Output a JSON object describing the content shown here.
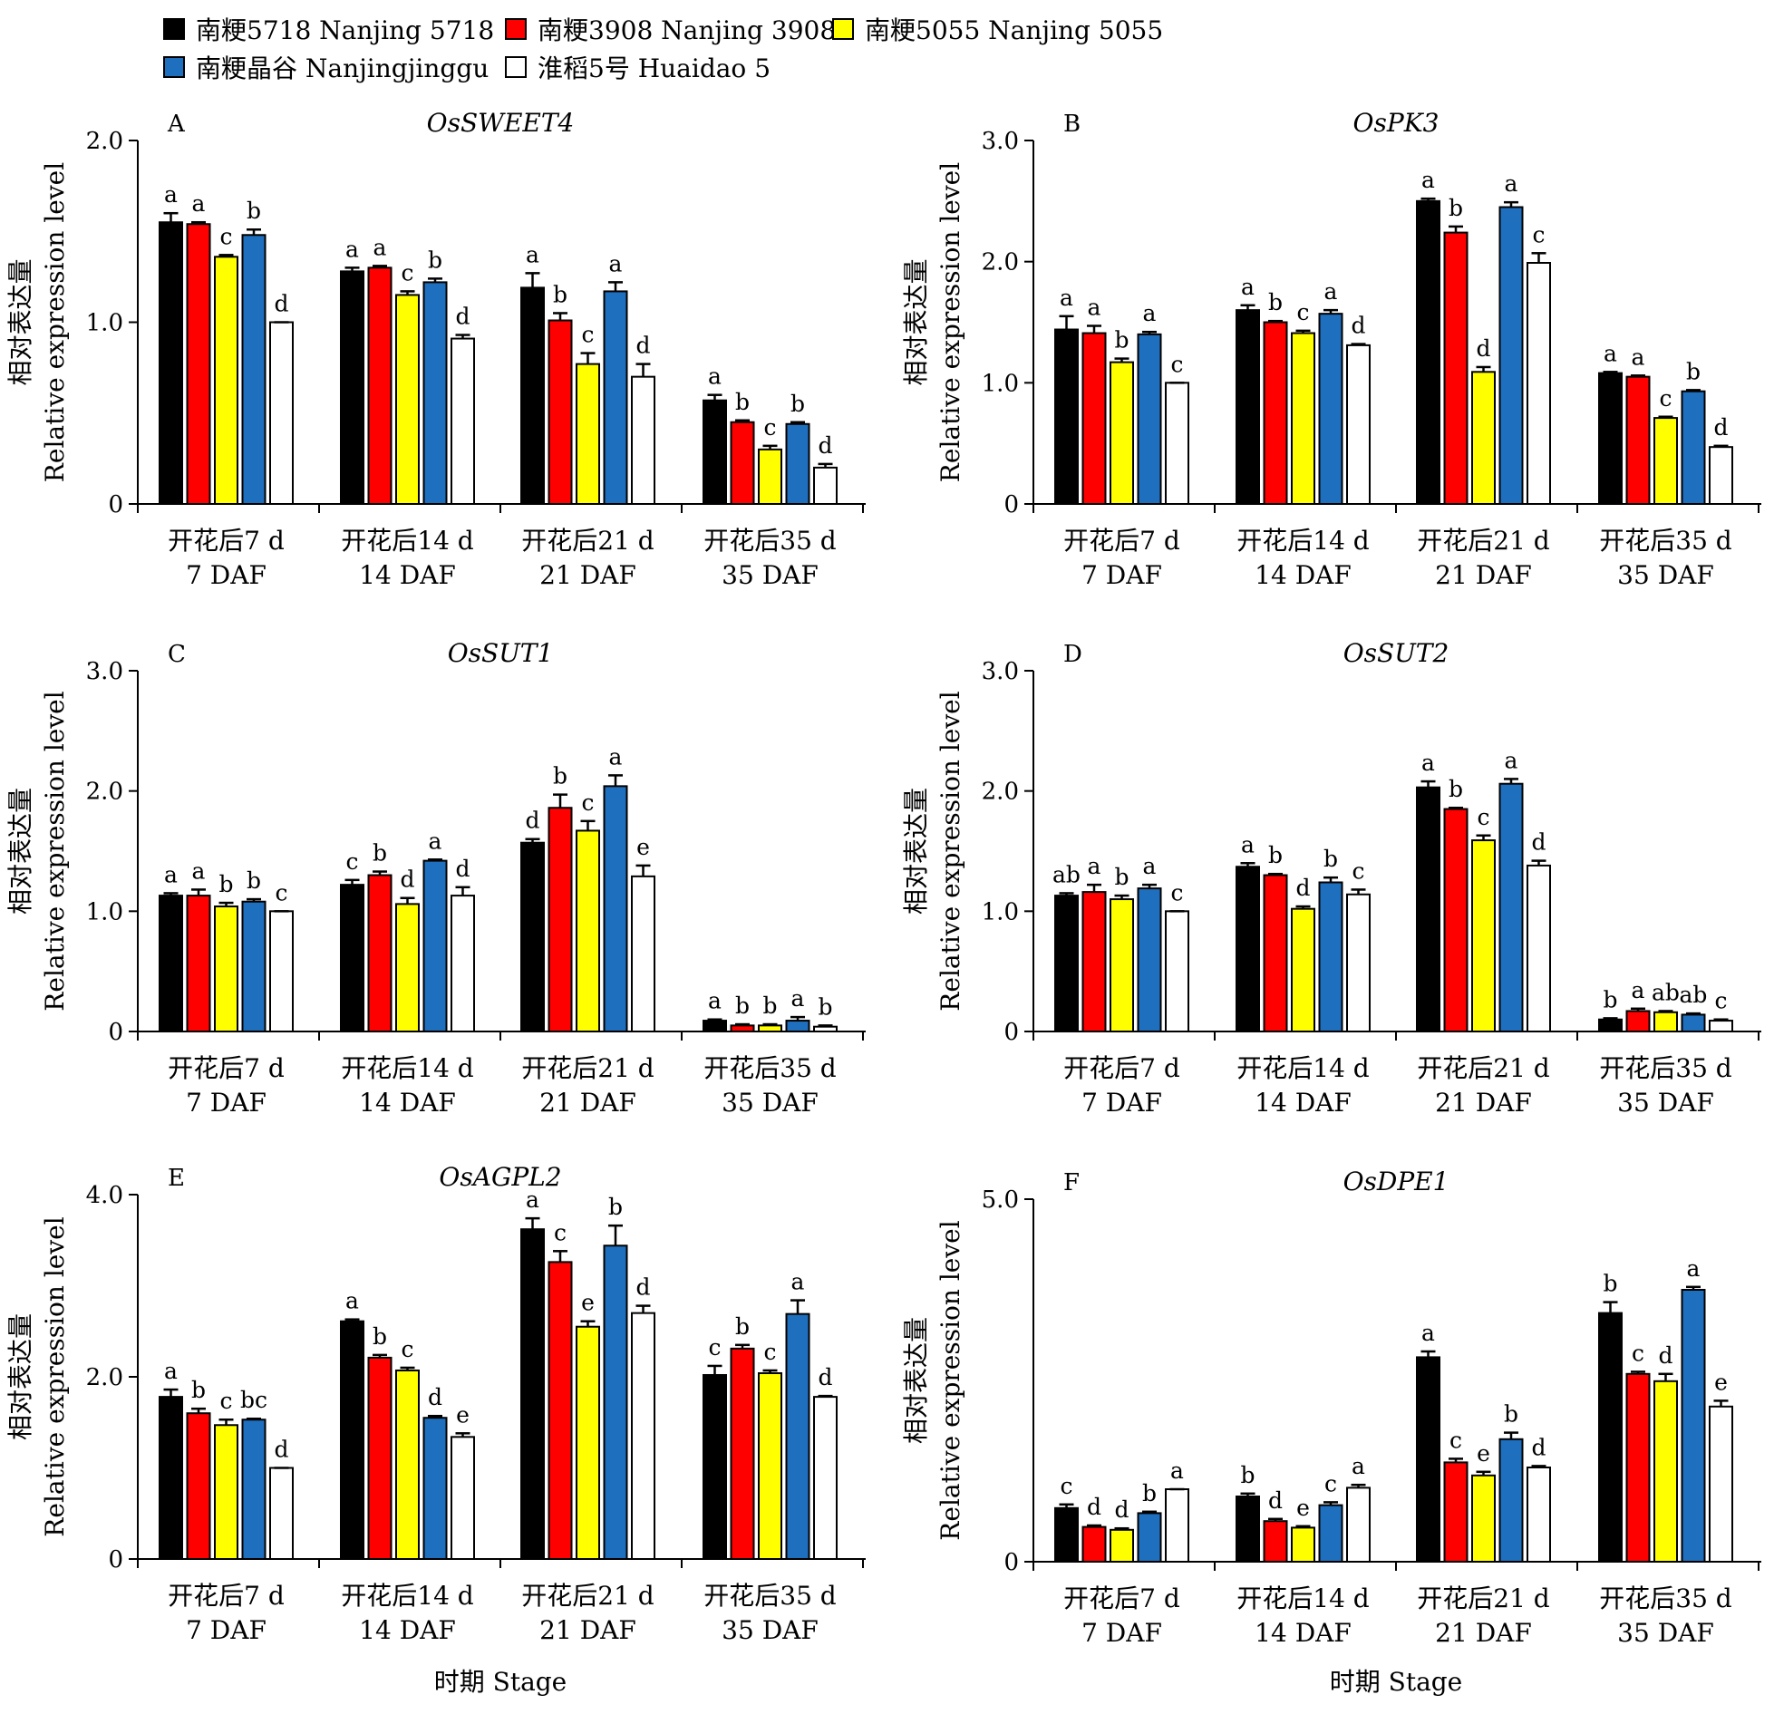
{
  "legend": {
    "items": [
      {
        "label": "南粳5718 Nanjing 5718",
        "color": "#000000"
      },
      {
        "label": "南粳3908 Nanjing 3908",
        "color": "#ff0000"
      },
      {
        "label": "南粳5055 Nanjing 5055",
        "color": "#ffff00"
      },
      {
        "label": "南粳晶谷 Nanjingjinggu",
        "color": "#1f6fbf"
      },
      {
        "label": "淮稻5号 Huaidao 5",
        "color": "#ffffff"
      }
    ]
  },
  "xlabel_bottom": "时期 Stage",
  "chart_data": [
    {
      "panel": "A",
      "title": "OsSWEET4",
      "type": "bar",
      "ylabel_cn": "相对表达量",
      "ylabel_en": "Relative expression level",
      "ylim": [
        0,
        2.0
      ],
      "yticks": [
        "0",
        "1.0",
        "2.0"
      ],
      "ytick_values": [
        0,
        1.0,
        2.0
      ],
      "categories": [
        [
          "开花后7 d",
          "7 DAF"
        ],
        [
          "开花后14 d",
          "14 DAF"
        ],
        [
          "开花后21 d",
          "21 DAF"
        ],
        [
          "开花后35 d",
          "35 DAF"
        ]
      ],
      "series": [
        {
          "name": "南粳5718 Nanjing 5718",
          "values": [
            1.55,
            1.28,
            1.19,
            0.57
          ],
          "errors": [
            0.05,
            0.02,
            0.08,
            0.03
          ],
          "letters": [
            "a",
            "a",
            "a",
            "a"
          ]
        },
        {
          "name": "南粳3908 Nanjing 3908",
          "values": [
            1.54,
            1.3,
            1.01,
            0.45
          ],
          "errors": [
            0.01,
            0.01,
            0.04,
            0.01
          ],
          "letters": [
            "a",
            "a",
            "b",
            "b"
          ]
        },
        {
          "name": "南粳5055 Nanjing 5055",
          "values": [
            1.36,
            1.15,
            0.77,
            0.3
          ],
          "errors": [
            0.01,
            0.02,
            0.06,
            0.02
          ],
          "letters": [
            "c",
            "c",
            "c",
            "c"
          ]
        },
        {
          "name": "南粳晶谷 Nanjingjinggu",
          "values": [
            1.48,
            1.22,
            1.17,
            0.44
          ],
          "errors": [
            0.03,
            0.02,
            0.05,
            0.01
          ],
          "letters": [
            "b",
            "b",
            "a",
            "b"
          ]
        },
        {
          "name": "淮稻5号 Huaidao 5",
          "values": [
            1.0,
            0.91,
            0.7,
            0.2
          ],
          "errors": [
            0.0,
            0.02,
            0.07,
            0.02
          ],
          "letters": [
            "d",
            "d",
            "d",
            "d"
          ]
        }
      ]
    },
    {
      "panel": "B",
      "title": "OsPK3",
      "type": "bar",
      "ylabel_cn": "相对表达量",
      "ylabel_en": "Relative expression level",
      "ylim": [
        0,
        3.0
      ],
      "yticks": [
        "0",
        "1.0",
        "2.0",
        "3.0"
      ],
      "ytick_values": [
        0,
        1.0,
        2.0,
        3.0
      ],
      "categories": [
        [
          "开花后7 d",
          "7 DAF"
        ],
        [
          "开花后14 d",
          "14 DAF"
        ],
        [
          "开花后21 d",
          "21 DAF"
        ],
        [
          "开花后35 d",
          "35 DAF"
        ]
      ],
      "series": [
        {
          "name": "南粳5718 Nanjing 5718",
          "values": [
            1.44,
            1.6,
            2.5,
            1.08
          ],
          "errors": [
            0.11,
            0.04,
            0.02,
            0.01
          ],
          "letters": [
            "a",
            "a",
            "a",
            "a"
          ]
        },
        {
          "name": "南粳3908 Nanjing 3908",
          "values": [
            1.41,
            1.5,
            2.24,
            1.05
          ],
          "errors": [
            0.06,
            0.01,
            0.05,
            0.01
          ],
          "letters": [
            "a",
            "b",
            "b",
            "a"
          ]
        },
        {
          "name": "南粳5055 Nanjing 5055",
          "values": [
            1.17,
            1.41,
            1.09,
            0.71
          ],
          "errors": [
            0.03,
            0.02,
            0.04,
            0.01
          ],
          "letters": [
            "b",
            "c",
            "d",
            "c"
          ]
        },
        {
          "name": "南粳晶谷 Nanjingjinggu",
          "values": [
            1.4,
            1.57,
            2.45,
            0.93
          ],
          "errors": [
            0.02,
            0.03,
            0.04,
            0.01
          ],
          "letters": [
            "a",
            "a",
            "a",
            "b"
          ]
        },
        {
          "name": "淮稻5号 Huaidao 5",
          "values": [
            1.0,
            1.31,
            1.99,
            0.47
          ],
          "errors": [
            0.0,
            0.01,
            0.08,
            0.01
          ],
          "letters": [
            "c",
            "d",
            "c",
            "d"
          ]
        }
      ]
    },
    {
      "panel": "C",
      "title": "OsSUT1",
      "type": "bar",
      "ylabel_cn": "相对表达量",
      "ylabel_en": "Relative expression level",
      "ylim": [
        0,
        3.0
      ],
      "yticks": [
        "0",
        "1.0",
        "2.0",
        "3.0"
      ],
      "ytick_values": [
        0,
        1.0,
        2.0,
        3.0
      ],
      "categories": [
        [
          "开花后7 d",
          "7 DAF"
        ],
        [
          "开花后14 d",
          "14 DAF"
        ],
        [
          "开花后21 d",
          "21 DAF"
        ],
        [
          "开花后35 d",
          "35 DAF"
        ]
      ],
      "series": [
        {
          "name": "南粳5718 Nanjing 5718",
          "values": [
            1.13,
            1.22,
            1.57,
            0.09
          ],
          "errors": [
            0.02,
            0.04,
            0.03,
            0.01
          ],
          "letters": [
            "a",
            "c",
            "d",
            "a"
          ]
        },
        {
          "name": "南粳3908 Nanjing 3908",
          "values": [
            1.13,
            1.3,
            1.86,
            0.05
          ],
          "errors": [
            0.05,
            0.03,
            0.11,
            0.01
          ],
          "letters": [
            "a",
            "b",
            "b",
            "b"
          ]
        },
        {
          "name": "南粳5055 Nanjing 5055",
          "values": [
            1.04,
            1.06,
            1.67,
            0.05
          ],
          "errors": [
            0.03,
            0.05,
            0.08,
            0.01
          ],
          "letters": [
            "b",
            "d",
            "c",
            "b"
          ]
        },
        {
          "name": "南粳晶谷 Nanjingjinggu",
          "values": [
            1.08,
            1.42,
            2.04,
            0.09
          ],
          "errors": [
            0.02,
            0.01,
            0.09,
            0.03
          ],
          "letters": [
            "b",
            "a",
            "a",
            "a"
          ]
        },
        {
          "name": "淮稻5号 Huaidao 5",
          "values": [
            1.0,
            1.13,
            1.29,
            0.04
          ],
          "errors": [
            0.0,
            0.07,
            0.09,
            0.01
          ],
          "letters": [
            "c",
            "d",
            "e",
            "b"
          ]
        }
      ]
    },
    {
      "panel": "D",
      "title": "OsSUT2",
      "type": "bar",
      "ylabel_cn": "相对表达量",
      "ylabel_en": "Relative expression level",
      "ylim": [
        0,
        3.0
      ],
      "yticks": [
        "0",
        "1.0",
        "2.0",
        "3.0"
      ],
      "ytick_values": [
        0,
        1.0,
        2.0,
        3.0
      ],
      "categories": [
        [
          "开花后7 d",
          "7 DAF"
        ],
        [
          "开花后14 d",
          "14 DAF"
        ],
        [
          "开花后21 d",
          "21 DAF"
        ],
        [
          "开花后35 d",
          "35 DAF"
        ]
      ],
      "series": [
        {
          "name": "南粳5718 Nanjing 5718",
          "values": [
            1.13,
            1.37,
            2.03,
            0.1
          ],
          "errors": [
            0.02,
            0.03,
            0.05,
            0.01
          ],
          "letters": [
            "ab",
            "a",
            "a",
            "b"
          ]
        },
        {
          "name": "南粳3908 Nanjing 3908",
          "values": [
            1.16,
            1.3,
            1.85,
            0.17
          ],
          "errors": [
            0.06,
            0.01,
            0.01,
            0.02
          ],
          "letters": [
            "a",
            "b",
            "b",
            "a"
          ]
        },
        {
          "name": "南粳5055 Nanjing 5055",
          "values": [
            1.1,
            1.02,
            1.59,
            0.16
          ],
          "errors": [
            0.03,
            0.02,
            0.04,
            0.01
          ],
          "letters": [
            "b",
            "d",
            "c",
            "ab"
          ]
        },
        {
          "name": "南粳晶谷 Nanjingjinggu",
          "values": [
            1.19,
            1.24,
            2.06,
            0.14
          ],
          "errors": [
            0.03,
            0.04,
            0.04,
            0.01
          ],
          "letters": [
            "a",
            "b",
            "a",
            "ab"
          ]
        },
        {
          "name": "淮稻5号 Huaidao 5",
          "values": [
            1.0,
            1.14,
            1.38,
            0.09
          ],
          "errors": [
            0.0,
            0.04,
            0.04,
            0.01
          ],
          "letters": [
            "c",
            "c",
            "d",
            "c"
          ]
        }
      ]
    },
    {
      "panel": "E",
      "title": "OsAGPL2",
      "type": "bar",
      "ylabel_cn": "相对表达量",
      "ylabel_en": "Relative expression level",
      "ylim": [
        0,
        4.0
      ],
      "yticks": [
        "0",
        "2.0",
        "4.0"
      ],
      "ytick_values": [
        0,
        2.0,
        4.0
      ],
      "categories": [
        [
          "开花后7 d",
          "7 DAF"
        ],
        [
          "开花后14 d",
          "14 DAF"
        ],
        [
          "开花后21 d",
          "21 DAF"
        ],
        [
          "开花后35 d",
          "35 DAF"
        ]
      ],
      "series": [
        {
          "name": "南粳5718 Nanjing 5718",
          "values": [
            1.78,
            2.61,
            3.62,
            2.02
          ],
          "errors": [
            0.08,
            0.02,
            0.12,
            0.1
          ],
          "letters": [
            "a",
            "a",
            "a",
            "c"
          ]
        },
        {
          "name": "南粳3908 Nanjing 3908",
          "values": [
            1.6,
            2.21,
            3.26,
            2.31
          ],
          "errors": [
            0.05,
            0.03,
            0.12,
            0.04
          ],
          "letters": [
            "b",
            "b",
            "c",
            "b"
          ]
        },
        {
          "name": "南粳5055 Nanjing 5055",
          "values": [
            1.47,
            2.07,
            2.55,
            2.04
          ],
          "errors": [
            0.06,
            0.03,
            0.06,
            0.03
          ],
          "letters": [
            "c",
            "c",
            "e",
            "c"
          ]
        },
        {
          "name": "南粳晶谷 Nanjingjinggu",
          "values": [
            1.53,
            1.55,
            3.44,
            2.69
          ],
          "errors": [
            0.01,
            0.02,
            0.22,
            0.15
          ],
          "letters": [
            "bc",
            "d",
            "b",
            "a"
          ]
        },
        {
          "name": "淮稻5号 Huaidao 5",
          "values": [
            1.0,
            1.34,
            2.7,
            1.78
          ],
          "errors": [
            0.0,
            0.04,
            0.08,
            0.01
          ],
          "letters": [
            "d",
            "e",
            "d",
            "d"
          ]
        }
      ]
    },
    {
      "panel": "F",
      "title": "OsDPE1",
      "type": "bar",
      "ylabel_cn": "相对表达量",
      "ylabel_en": "Relative expression level",
      "ylim": [
        0,
        5.0
      ],
      "yticks": [
        "0",
        "5.0"
      ],
      "ytick_values": [
        0,
        5.0
      ],
      "categories": [
        [
          "开花后7 d",
          "7 DAF"
        ],
        [
          "开花后14 d",
          "14 DAF"
        ],
        [
          "开花后21 d",
          "21 DAF"
        ],
        [
          "开花后35 d",
          "35 DAF"
        ]
      ],
      "series": [
        {
          "name": "南粳5718 Nanjing 5718",
          "values": [
            0.74,
            0.9,
            2.82,
            3.43
          ],
          "errors": [
            0.05,
            0.04,
            0.08,
            0.15
          ],
          "letters": [
            "c",
            "b",
            "a",
            "b"
          ]
        },
        {
          "name": "南粳3908 Nanjing 3908",
          "values": [
            0.48,
            0.56,
            1.37,
            2.59
          ],
          "errors": [
            0.02,
            0.03,
            0.05,
            0.03
          ],
          "letters": [
            "d",
            "d",
            "c",
            "c"
          ]
        },
        {
          "name": "南粳5055 Nanjing 5055",
          "values": [
            0.44,
            0.47,
            1.19,
            2.49
          ],
          "errors": [
            0.02,
            0.02,
            0.05,
            0.1
          ],
          "letters": [
            "d",
            "e",
            "e",
            "d"
          ]
        },
        {
          "name": "南粳晶谷 Nanjingjinggu",
          "values": [
            0.67,
            0.78,
            1.69,
            3.75
          ],
          "errors": [
            0.02,
            0.04,
            0.09,
            0.04
          ],
          "letters": [
            "b",
            "c",
            "b",
            "a"
          ]
        },
        {
          "name": "淮稻5号 Huaidao 5",
          "values": [
            1.0,
            1.02,
            1.3,
            2.14
          ],
          "errors": [
            0.0,
            0.04,
            0.02,
            0.08
          ],
          "letters": [
            "a",
            "a",
            "d",
            "e"
          ]
        }
      ]
    }
  ]
}
